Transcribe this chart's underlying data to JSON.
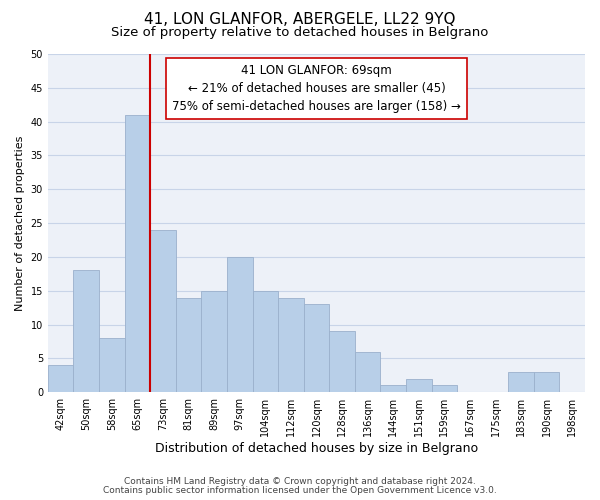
{
  "title": "41, LON GLANFOR, ABERGELE, LL22 9YQ",
  "subtitle": "Size of property relative to detached houses in Belgrano",
  "xlabel": "Distribution of detached houses by size in Belgrano",
  "ylabel": "Number of detached properties",
  "bar_labels": [
    "42sqm",
    "50sqm",
    "58sqm",
    "65sqm",
    "73sqm",
    "81sqm",
    "89sqm",
    "97sqm",
    "104sqm",
    "112sqm",
    "120sqm",
    "128sqm",
    "136sqm",
    "144sqm",
    "151sqm",
    "159sqm",
    "167sqm",
    "175sqm",
    "183sqm",
    "190sqm",
    "198sqm"
  ],
  "bar_values": [
    4,
    18,
    8,
    41,
    24,
    14,
    15,
    20,
    15,
    14,
    13,
    9,
    6,
    1,
    2,
    1,
    0,
    0,
    3,
    3,
    0
  ],
  "bar_color": "#b8cfe8",
  "bar_edge_color": "#9ab0cc",
  "highlight_line_color": "#cc0000",
  "annotation_title": "41 LON GLANFOR: 69sqm",
  "annotation_line1": "← 21% of detached houses are smaller (45)",
  "annotation_line2": "75% of semi-detached houses are larger (158) →",
  "annotation_box_color": "#ffffff",
  "annotation_box_edge": "#cc0000",
  "ylim": [
    0,
    50
  ],
  "yticks": [
    0,
    5,
    10,
    15,
    20,
    25,
    30,
    35,
    40,
    45,
    50
  ],
  "grid_color": "#c8d4e8",
  "footer_line1": "Contains HM Land Registry data © Crown copyright and database right 2024.",
  "footer_line2": "Contains public sector information licensed under the Open Government Licence v3.0.",
  "background_color": "#edf1f8",
  "figure_bg": "#ffffff",
  "title_fontsize": 11,
  "subtitle_fontsize": 9.5,
  "xlabel_fontsize": 9,
  "ylabel_fontsize": 8,
  "tick_fontsize": 7,
  "footer_fontsize": 6.5,
  "annotation_fontsize": 8.5,
  "bar_width": 1.0
}
